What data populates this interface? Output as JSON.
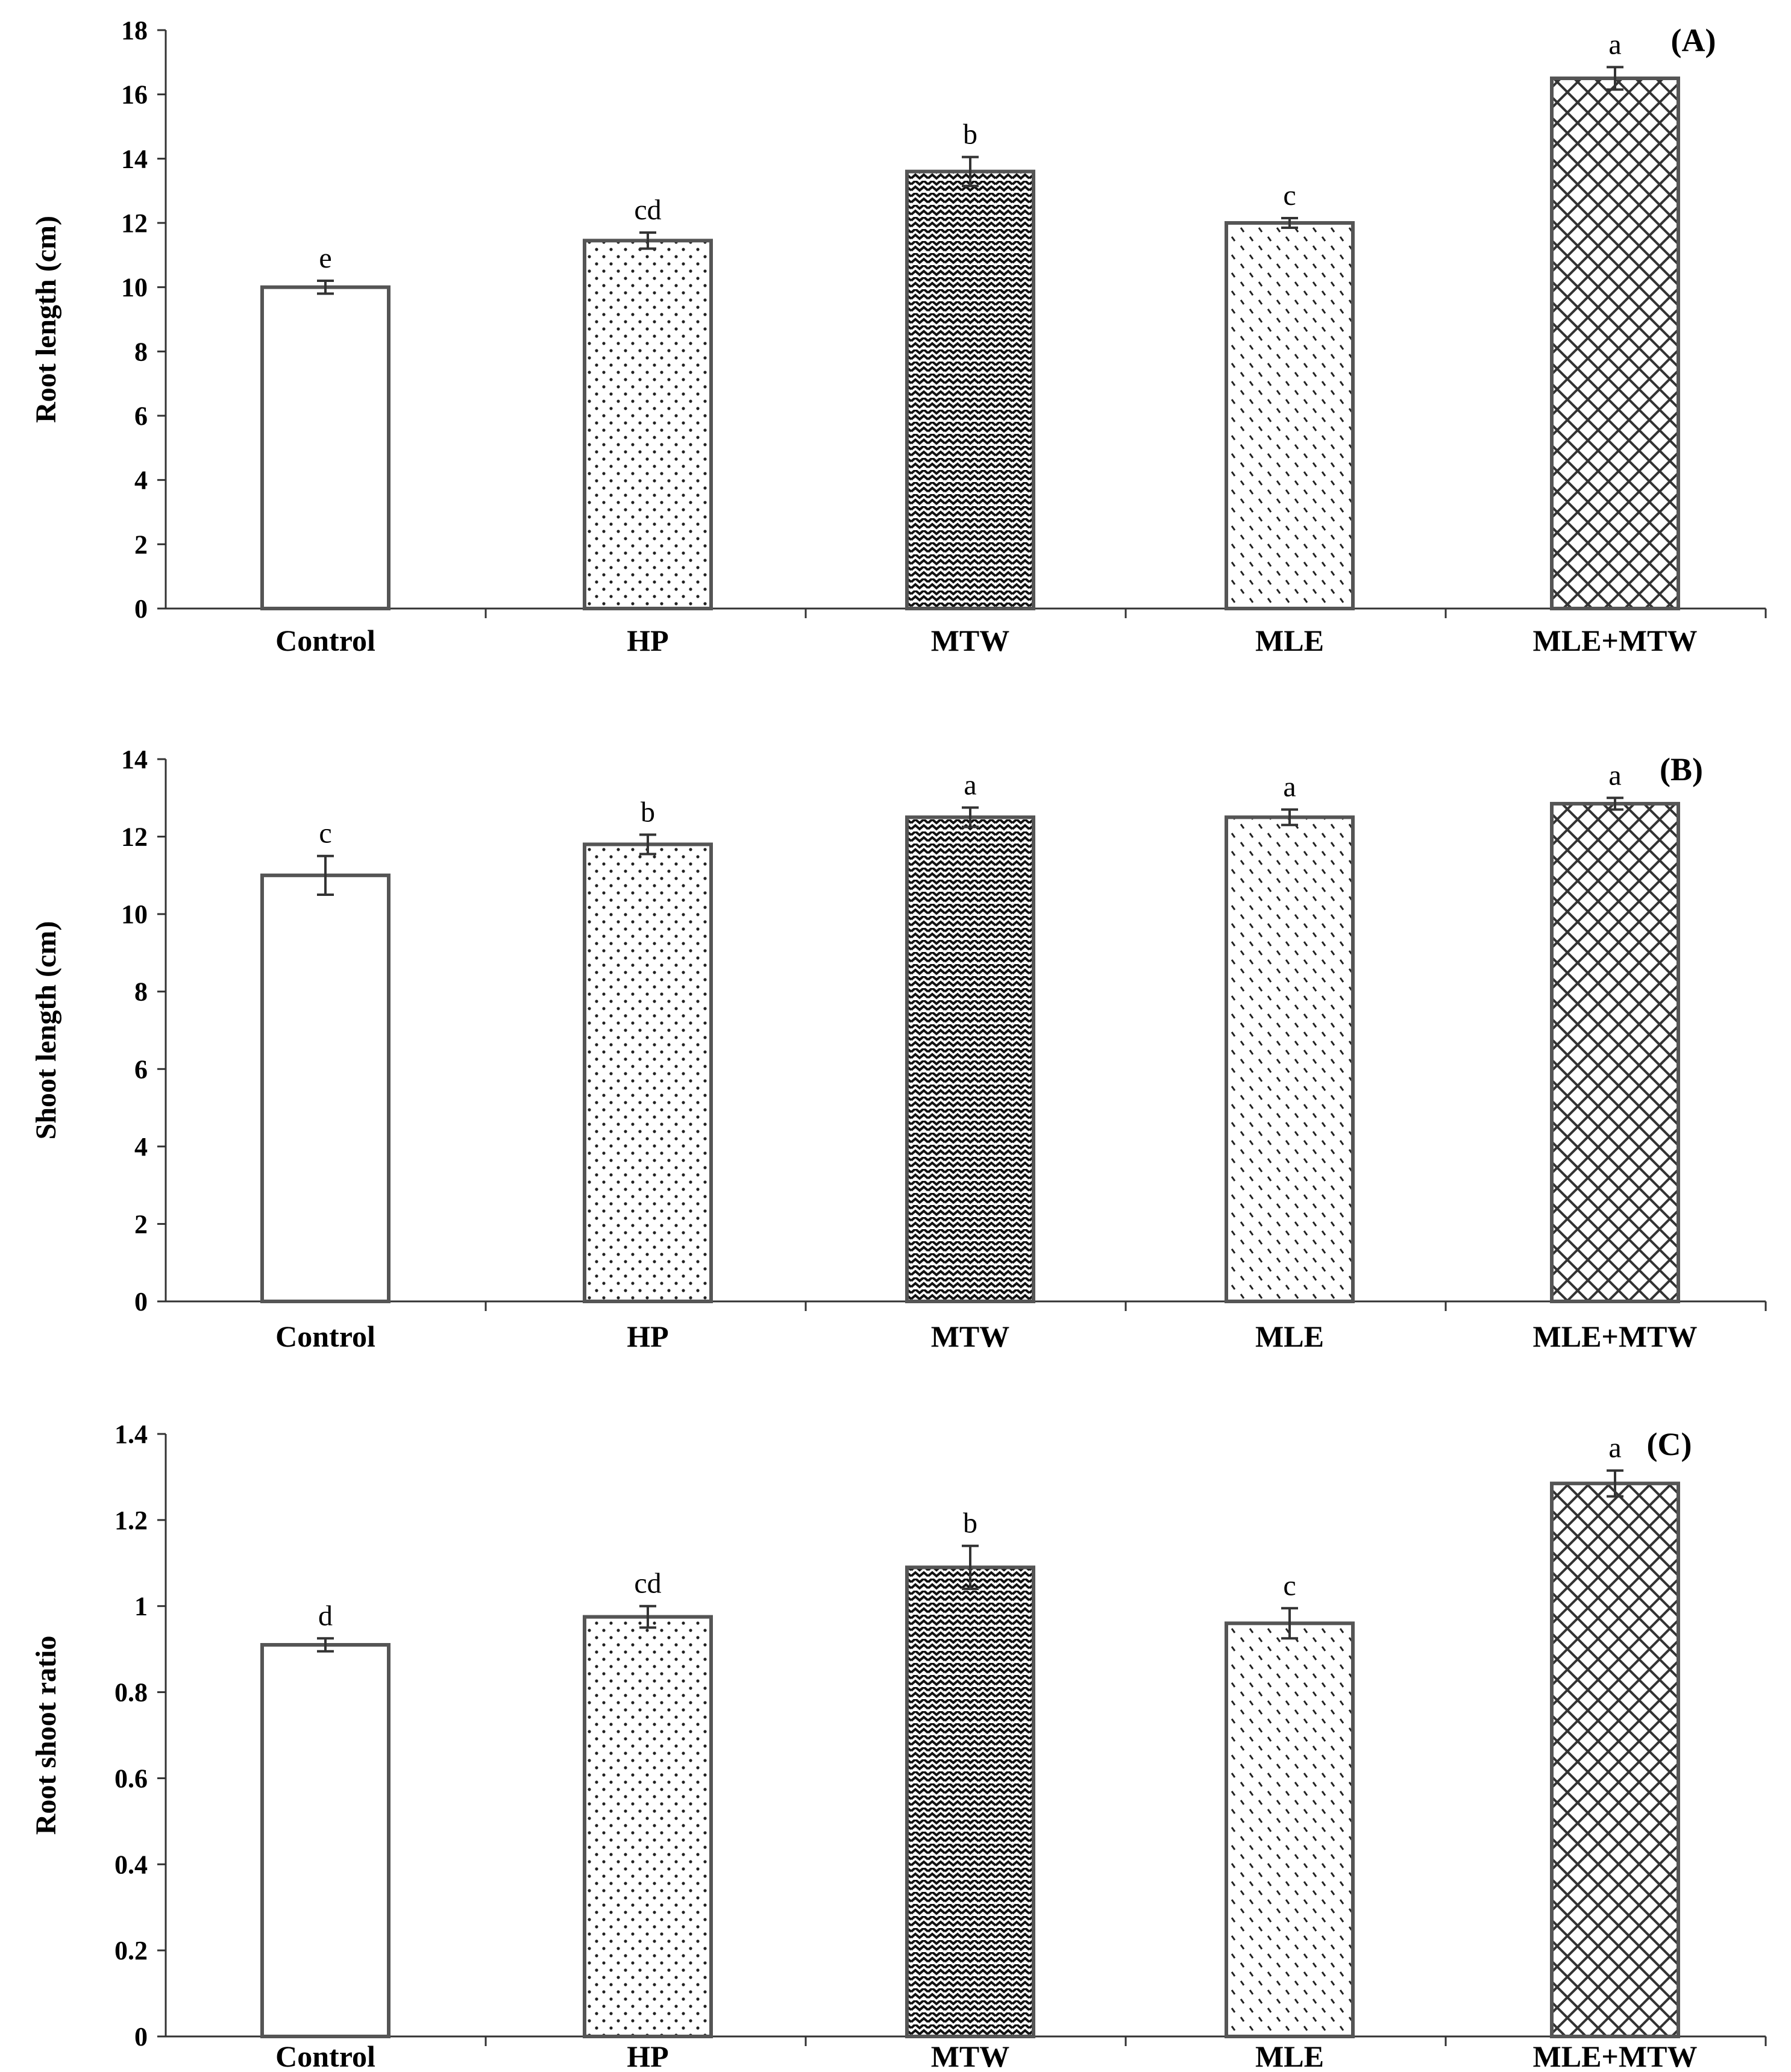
{
  "colors": {
    "bar_stroke": "#555555",
    "axis": "#333333",
    "text": "#000000",
    "background": "#ffffff"
  },
  "chart_data": [
    {
      "type": "bar",
      "panel_label": "(A)",
      "title": "",
      "xlabel": "",
      "ylabel": "Root length (cm)",
      "categories": [
        "Control",
        "HP",
        "MTW",
        "MLE",
        "MLE+MTW"
      ],
      "values": [
        10.0,
        11.45,
        13.6,
        12.0,
        16.5
      ],
      "errors": [
        0.2,
        0.25,
        0.45,
        0.15,
        0.35
      ],
      "significance": [
        "e",
        "cd",
        "b",
        "c",
        "a"
      ],
      "patterns": [
        "none",
        "dots",
        "zigzag",
        "dashes",
        "crosshatch"
      ],
      "ylim": [
        0,
        18
      ],
      "yticks": [
        0,
        2,
        4,
        6,
        8,
        10,
        12,
        14,
        16,
        18
      ],
      "ytick_labels": [
        "0",
        "2",
        "4",
        "6",
        "8",
        "10",
        "12",
        "14",
        "16",
        "18"
      ],
      "grid": false
    },
    {
      "type": "bar",
      "panel_label": "(B)",
      "title": "",
      "xlabel": "",
      "ylabel": "Shoot length (cm)",
      "categories": [
        "Control",
        "HP",
        "MTW",
        "MLE",
        "MLE+MTW"
      ],
      "values": [
        11.0,
        11.8,
        12.5,
        12.5,
        12.85
      ],
      "errors": [
        0.5,
        0.25,
        0.25,
        0.2,
        0.15
      ],
      "significance": [
        "c",
        "b",
        "a",
        "a",
        "a"
      ],
      "patterns": [
        "none",
        "dots",
        "zigzag",
        "dashes",
        "crosshatch"
      ],
      "ylim": [
        0,
        14
      ],
      "yticks": [
        0,
        2,
        4,
        6,
        8,
        10,
        12,
        14
      ],
      "ytick_labels": [
        "0",
        "2",
        "4",
        "6",
        "8",
        "10",
        "12",
        "14"
      ],
      "grid": false
    },
    {
      "type": "bar",
      "panel_label": "(C)",
      "title": "",
      "xlabel": "",
      "ylabel": "Root shoot ratio",
      "categories": [
        "Control",
        "HP",
        "MTW",
        "MLE",
        "MLE+MTW"
      ],
      "values": [
        0.91,
        0.975,
        1.09,
        0.96,
        1.285
      ],
      "errors": [
        0.015,
        0.025,
        0.05,
        0.035,
        0.03
      ],
      "significance": [
        "d",
        "cd",
        "b",
        "c",
        "a"
      ],
      "patterns": [
        "none",
        "dots",
        "zigzag",
        "dashes",
        "crosshatch"
      ],
      "ylim": [
        0,
        1.4
      ],
      "yticks": [
        0,
        0.2,
        0.4,
        0.6,
        0.8,
        1.0,
        1.2,
        1.4
      ],
      "ytick_labels": [
        "0",
        "0.2",
        "0.4",
        "0.6",
        "0.8",
        "1",
        "1.2",
        "1.4"
      ],
      "grid": false
    }
  ]
}
